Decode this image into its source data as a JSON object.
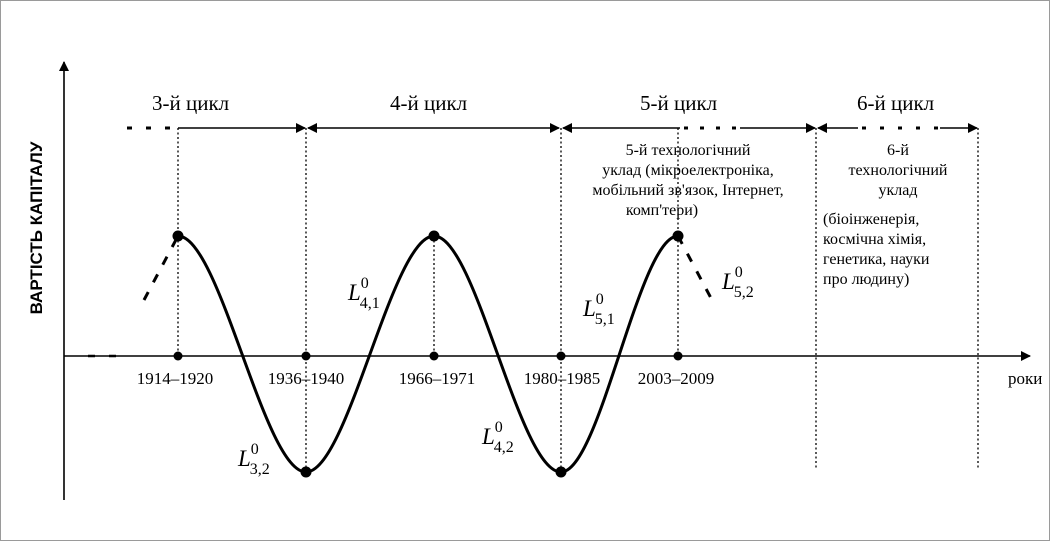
{
  "y_axis_label": "ВАРТІСТЬ КАПІТАЛУ",
  "x_axis_label": "роки",
  "cycles": [
    {
      "label": "3-й цикл"
    },
    {
      "label": "4-й цикл"
    },
    {
      "label": "5-й цикл"
    },
    {
      "label": "6-й цикл"
    }
  ],
  "periods": [
    "1914–1920",
    "1936–1940",
    "1966–1971",
    "1980–1985",
    "2003–2009"
  ],
  "wave_labels": [
    {
      "symbol": "L",
      "sup": "0",
      "sub": "4,1"
    },
    {
      "symbol": "L",
      "sup": "0",
      "sub": "5,1"
    },
    {
      "symbol": "L",
      "sup": "0",
      "sub": "5,2"
    },
    {
      "symbol": "L",
      "sup": "0",
      "sub": "3,2"
    },
    {
      "symbol": "L",
      "sup": "0",
      "sub": "4,2"
    }
  ],
  "structure_5": [
    "5-й технологічний",
    "уклад (мікроелектроніка,",
    "мобільний зв'язок, Інтернет,",
    "комп'тери)"
  ],
  "structure_6_title": [
    "6-й",
    "технологічний",
    "уклад"
  ],
  "structure_6_fields": [
    "(біоінженерія,",
    "космічна хімія,",
    "генетика, науки",
    "про людину)"
  ]
}
